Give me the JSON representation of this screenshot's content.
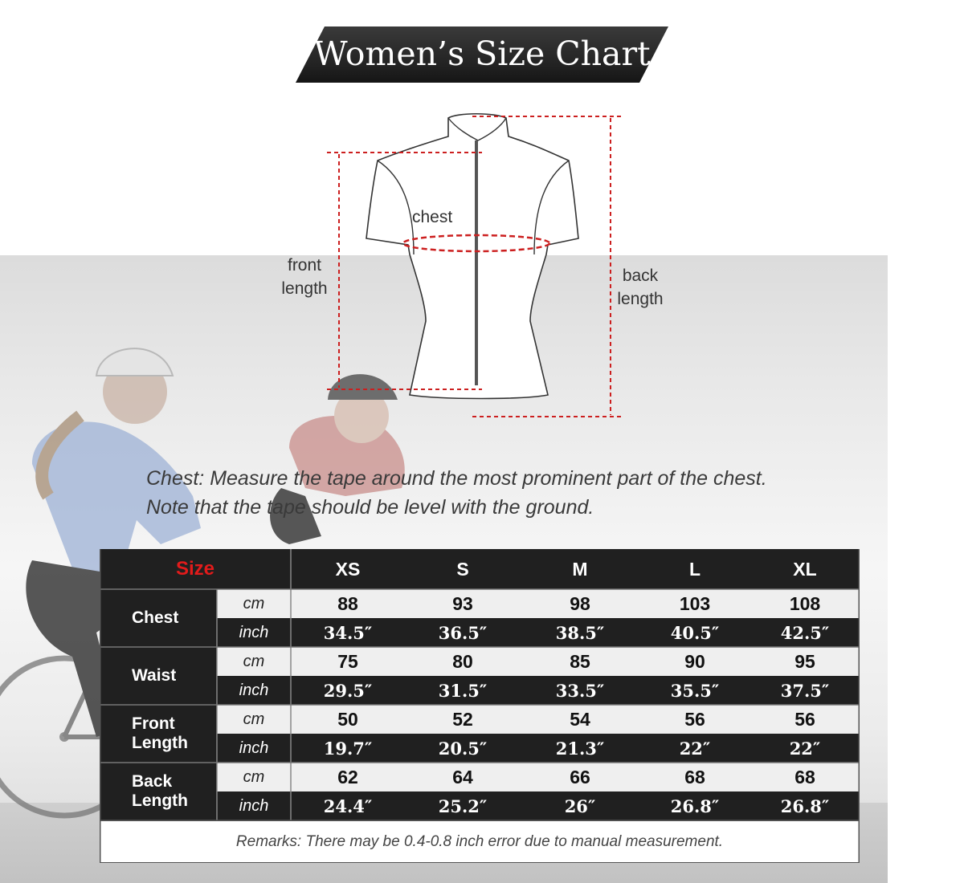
{
  "title": "Women’s Size Chart",
  "diagram": {
    "chest_label": "chest",
    "front_length_label": [
      "front",
      "length"
    ],
    "back_length_label": [
      "back",
      "length"
    ]
  },
  "instructions": [
    "Chest: Measure the tape around the most prominent part of the chest.",
    "Note that the tape should be level with the ground."
  ],
  "table": {
    "size_header": "Size",
    "sizes": [
      "XS",
      "S",
      "M",
      "L",
      "XL"
    ],
    "rows": [
      {
        "metric": [
          "Chest"
        ],
        "cm_label": "cm",
        "cm": [
          "88",
          "93",
          "98",
          "103",
          "108"
        ],
        "inch_label": "inch",
        "inch": [
          "34.5″",
          "36.5″",
          "38.5″",
          "40.5″",
          "42.5″"
        ]
      },
      {
        "metric": [
          "Waist"
        ],
        "cm_label": "cm",
        "cm": [
          "75",
          "80",
          "85",
          "90",
          "95"
        ],
        "inch_label": "inch",
        "inch": [
          "29.5″",
          "31.5″",
          "33.5″",
          "35.5″",
          "37.5″"
        ]
      },
      {
        "metric": [
          "Front",
          "Length"
        ],
        "cm_label": "cm",
        "cm": [
          "50",
          "52",
          "54",
          "56",
          "56"
        ],
        "inch_label": "inch",
        "inch": [
          "19.7″",
          "20.5″",
          "21.3″",
          "22″",
          "22″"
        ]
      },
      {
        "metric": [
          "Back",
          "Length"
        ],
        "cm_label": "cm",
        "cm": [
          "62",
          "64",
          "66",
          "68",
          "68"
        ],
        "inch_label": "inch",
        "inch": [
          "24.4″",
          "25.2″",
          "26″",
          "26.8″",
          "26.8″"
        ]
      }
    ],
    "remarks": "Remarks: There may be 0.4-0.8 inch error due to manual measurement."
  },
  "colors": {
    "table_dark": "#202020",
    "table_light": "#efefef",
    "size_header": "#e21b1b",
    "measure_lines": "#cc1f1f"
  }
}
